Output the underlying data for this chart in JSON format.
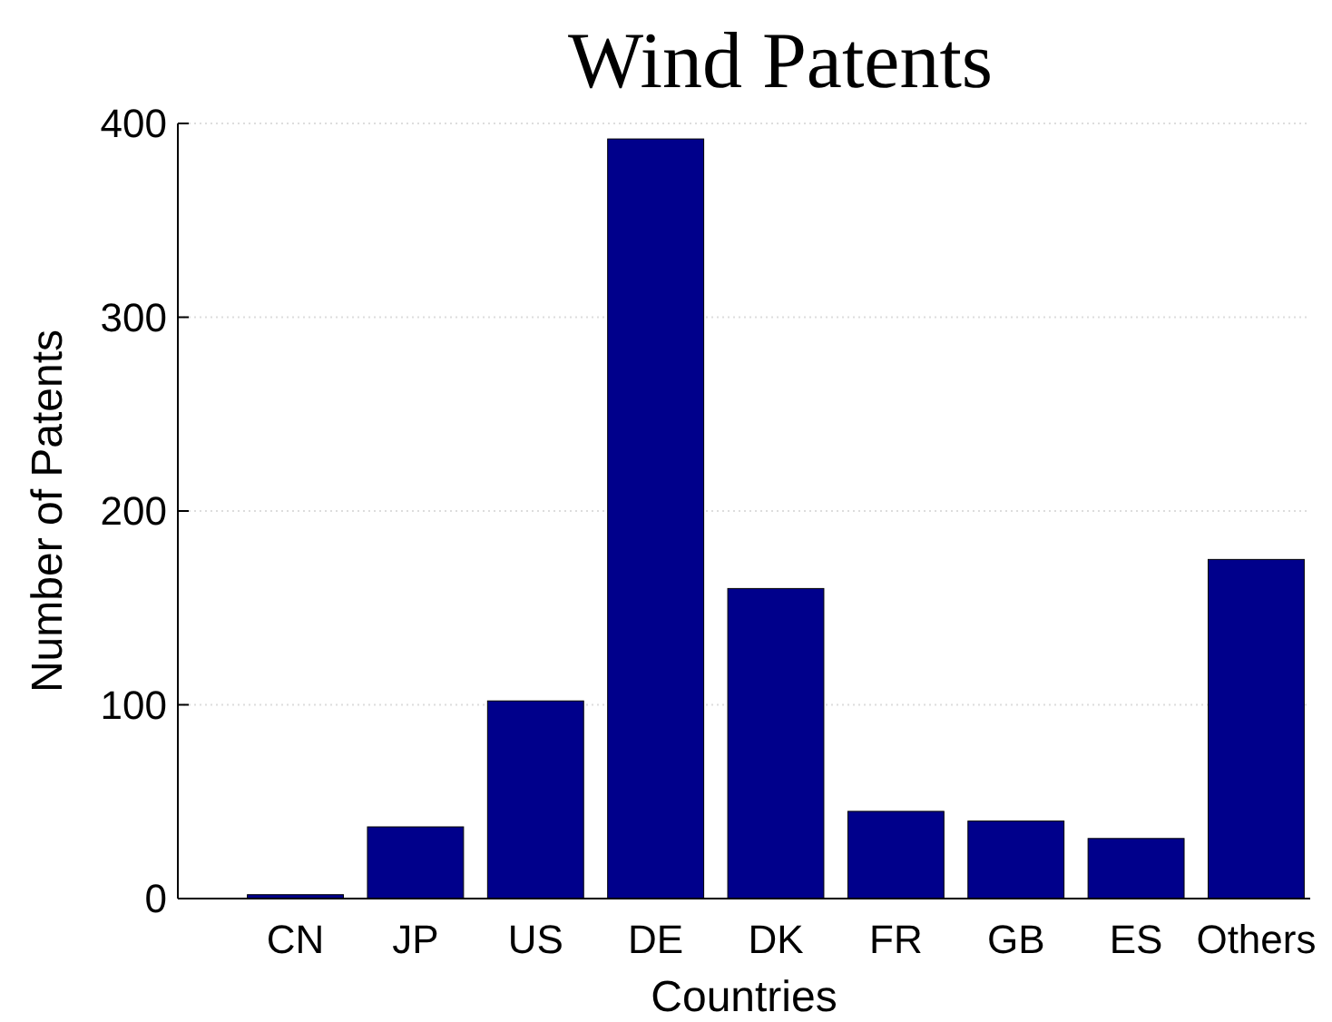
{
  "chart_data": {
    "type": "bar",
    "title": "Wind Patents",
    "xlabel": "Countries",
    "ylabel": "Number of Patents",
    "categories": [
      "CN",
      "JP",
      "US",
      "DE",
      "DK",
      "FR",
      "GB",
      "ES",
      "Others"
    ],
    "values": [
      2,
      37,
      102,
      392,
      160,
      45,
      40,
      31,
      175
    ],
    "color": "#00008b",
    "ylim": [
      0,
      400
    ],
    "yticks": [
      0,
      100,
      200,
      300,
      400
    ],
    "grid": "y"
  }
}
